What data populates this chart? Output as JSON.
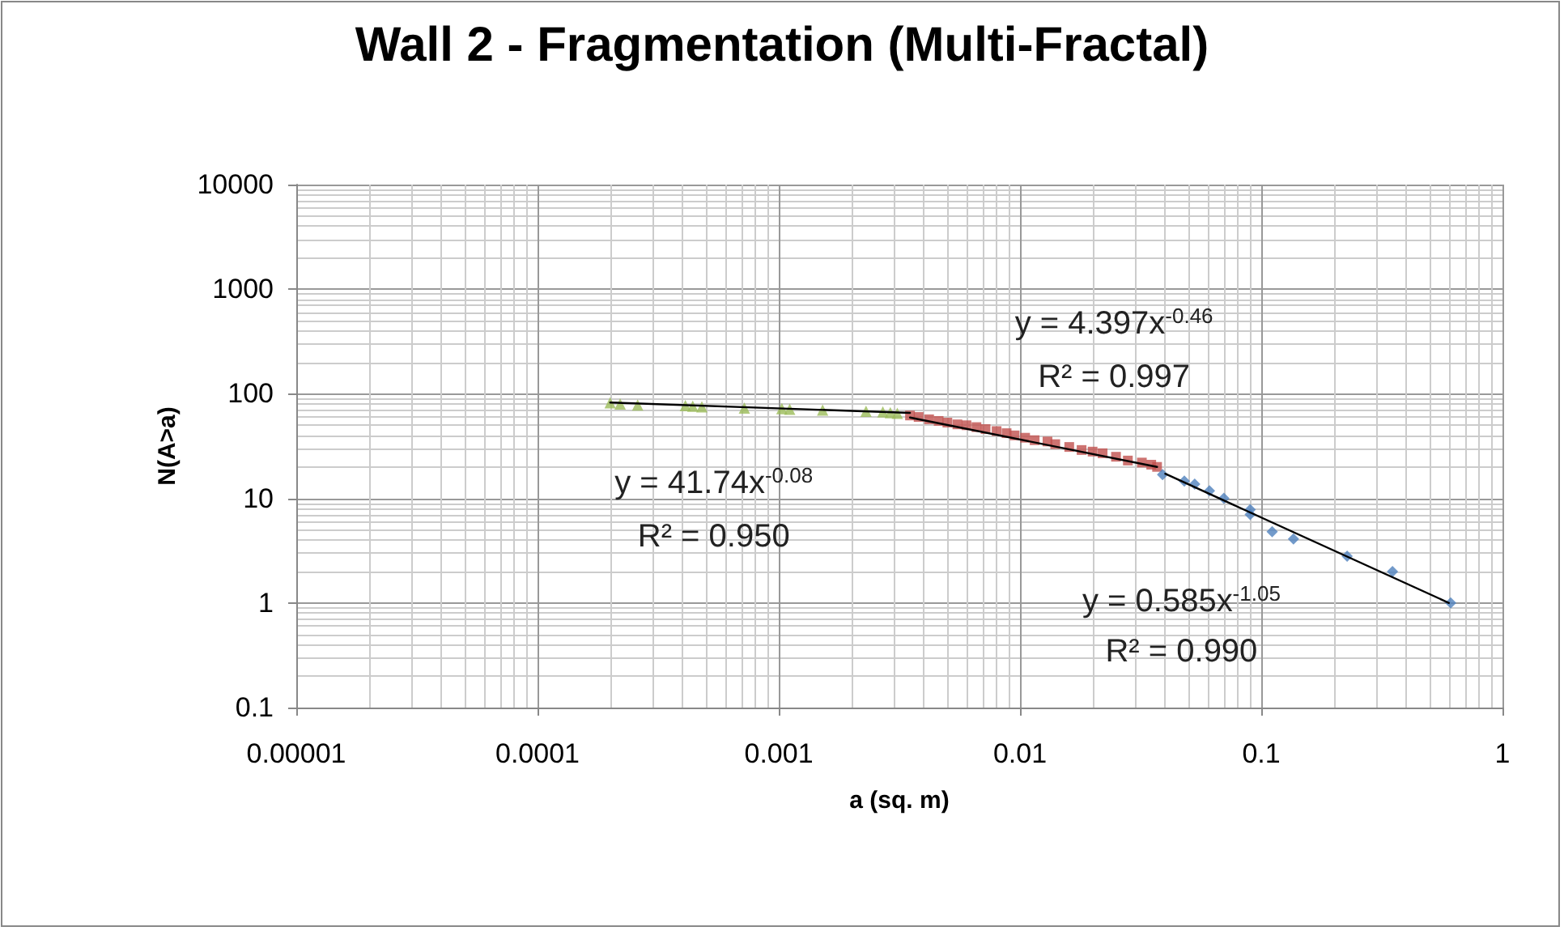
{
  "chart_data": {
    "type": "scatter",
    "title": "Wall 2 - Fragmentation (Multi-Fractal)",
    "xlabel": "a (sq. m)",
    "ylabel": "N(A>a)",
    "log": "xy",
    "grid": true,
    "xlim": [
      1e-05,
      1
    ],
    "xticks": [
      {
        "value": 1e-05,
        "label": "0.00001"
      },
      0.0001,
      0.001,
      0.01,
      0.1,
      1
    ],
    "ylim": [
      0.1,
      10000
    ],
    "yticks": [
      0.1,
      1,
      10,
      100,
      1000,
      10000
    ],
    "series": [
      {
        "marker": "triangle",
        "color": "#9bbb59",
        "x": [
          0.0002,
          0.00022,
          0.00026,
          0.00041,
          0.00044,
          0.00048,
          0.00072,
          0.00103,
          0.00111,
          0.00152,
          0.0023,
          0.0027,
          0.0029,
          0.0031
        ],
        "values": [
          82,
          80,
          78,
          77,
          76,
          75,
          73,
          72,
          71,
          70,
          68,
          67,
          66,
          65
        ]
      },
      {
        "marker": "square",
        "color": "#c0504d",
        "x": [
          0.0035,
          0.0038,
          0.0042,
          0.0046,
          0.005,
          0.0055,
          0.006,
          0.0066,
          0.0072,
          0.008,
          0.0088,
          0.0095,
          0.0105,
          0.0115,
          0.013,
          0.014,
          0.016,
          0.018,
          0.02,
          0.022,
          0.025,
          0.028,
          0.032,
          0.035,
          0.037
        ],
        "values": [
          62,
          60,
          57,
          55,
          53,
          51,
          50,
          48,
          46,
          44,
          42,
          40,
          38,
          36,
          35,
          33,
          31,
          29,
          28,
          27,
          25,
          23,
          22,
          21,
          20
        ]
      },
      {
        "marker": "diamond",
        "color": "#4f81bd",
        "x": [
          0.039,
          0.048,
          0.053,
          0.061,
          0.07,
          0.09,
          0.09,
          0.111,
          0.136,
          0.227,
          0.35,
          0.61
        ],
        "values": [
          16.9,
          14.6,
          13.7,
          11.8,
          10,
          7.8,
          7,
          4.8,
          4.1,
          2.8,
          2,
          1
        ]
      },
      {
        "type": "line",
        "marker": "none",
        "color": "#000000",
        "x": [
          0.0002,
          0.0035
        ],
        "values": [
          82.5,
          65.6
        ]
      },
      {
        "type": "line",
        "marker": "none",
        "color": "#000000",
        "x": [
          0.0035,
          0.037
        ],
        "values": [
          59.3,
          20
        ]
      },
      {
        "type": "line",
        "marker": "none",
        "color": "#000000",
        "x": [
          0.04,
          0.6
        ],
        "values": [
          17.2,
          1
        ]
      }
    ],
    "annotations": [
      "y = 41.74x$^{-0.08}$",
      "R² = 0.950",
      "y = 4.397x$^{-0.46}$",
      "R² = 0.997",
      "y = 0.585x$^{-1.05}$",
      "R² = 0.990"
    ]
  }
}
